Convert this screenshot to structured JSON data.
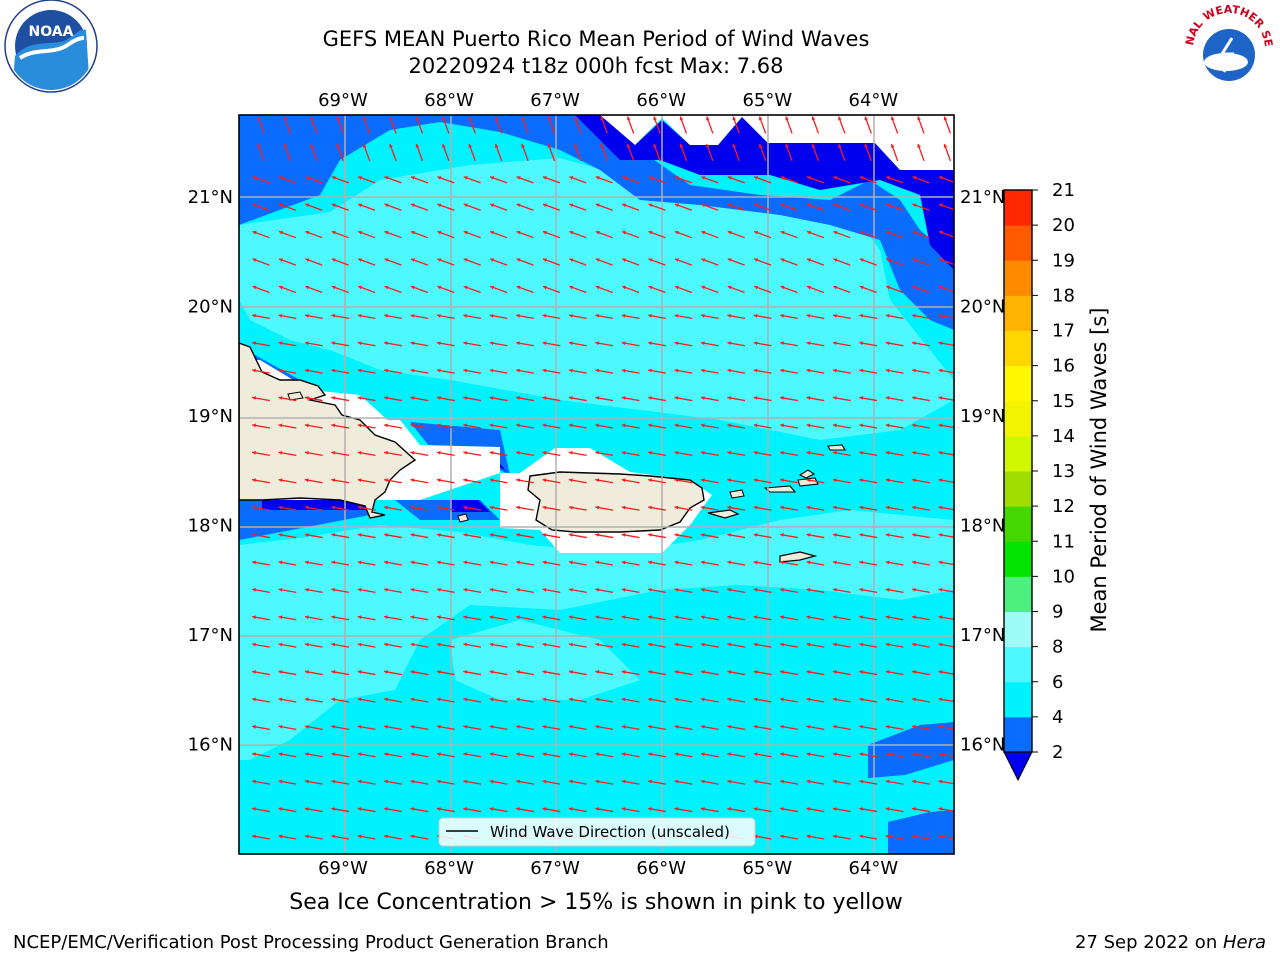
{
  "title_line1": "GEFS MEAN Puerto Rico Mean Period of Wind Waves",
  "title_line2": "20220924 t18z 000h fcst   Max: 7.68",
  "note": "Sea Ice Concentration > 15% is shown in pink to yellow",
  "footer_left": "NCEP/EMC/Verification Post Processing Product Generation Branch",
  "footer_right_date": "27 Sep 2022 on ",
  "footer_right_host": "Hera",
  "noaa_logo_text": "NOAA",
  "nws_logo_text": "NATIONAL WEATHER SERVICE",
  "legend_label": "Wind Wave Direction (unscaled)",
  "colorbar_label": "Mean Period of Wind Waves [s]",
  "chart_data": {
    "type": "heatmap",
    "subtype": "filled contour map with wind wave direction vectors",
    "variable": "Mean Period of Wind Waves",
    "units": "s",
    "lon_ticks": [
      -69,
      -68,
      -67,
      -66,
      -65,
      -64
    ],
    "lon_tick_labels": [
      "69°W",
      "68°W",
      "67°W",
      "66°W",
      "65°W",
      "64°W"
    ],
    "lat_ticks": [
      21,
      20,
      19,
      18,
      17,
      16
    ],
    "lat_tick_labels": [
      "21°N",
      "20°N",
      "19°N",
      "18°N",
      "17°N",
      "16°N"
    ],
    "lon_range": [
      -69.98,
      -63.24
    ],
    "lat_range": [
      15.0,
      21.75
    ],
    "colorbar_levels": [
      2,
      4,
      6,
      8,
      9,
      10,
      11,
      12,
      13,
      14,
      15,
      16,
      17,
      18,
      19,
      20,
      21
    ],
    "colorbar_tick_labels": [
      "21",
      "20",
      "19",
      "18",
      "17",
      "16",
      "15",
      "14",
      "13",
      "12",
      "11",
      "10",
      "9",
      "8",
      "6",
      "4",
      "2"
    ],
    "colorbar_colors": [
      "#0a6cff",
      "#00f2ff",
      "#4df9ff",
      "#9dfcf8",
      "#4df07e",
      "#00e400",
      "#44d800",
      "#a1de00",
      "#cef700",
      "#f3f200",
      "#fff700",
      "#ffd700",
      "#ffb300",
      "#ff8c00",
      "#ff5a00",
      "#ff2800"
    ],
    "colorbar_extend_color": "#0000ee",
    "max_value": 7.68,
    "field_bands": {
      "2-4": "#0a6cff",
      "<2": "#0000ee",
      "4-6": "#00f2ff",
      "6-8": "#4df9ff"
    },
    "vector_color": "#ff1a1a",
    "dominant_direction": "toward west-southwest",
    "land_color": "#efecdc",
    "grid": true
  }
}
